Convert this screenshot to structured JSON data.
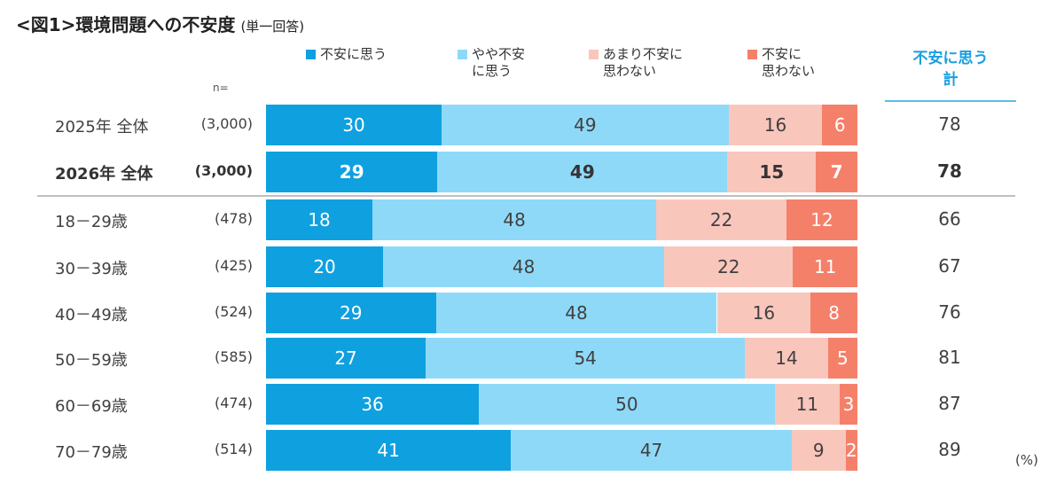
{
  "chart_data": {
    "type": "bar",
    "orientation": "horizontal-stacked-100",
    "title": "<図1>環境問題への不安度",
    "subtitle": "(単一回答)",
    "n_label": "n=",
    "unit": "(%)",
    "total_header": [
      "不安に思う",
      "計"
    ],
    "series": [
      {
        "name": "不安に思う",
        "color": "#0fa0e0",
        "label_color": "#ffffff"
      },
      {
        "name": "やや不安\nに思う",
        "color": "#8fd9f8",
        "label_color": "#404040"
      },
      {
        "name": "あまり不安に\n思わない",
        "color": "#f9c6bc",
        "label_color": "#404040"
      },
      {
        "name": "不安に\n思わない",
        "color": "#f5806a",
        "label_color": "#ffffff"
      }
    ],
    "rows": [
      {
        "label": "2025年 全体",
        "n": "(3,000)",
        "values": [
          30,
          49,
          16,
          6
        ],
        "total": 78,
        "bold": false
      },
      {
        "label": "2026年 全体",
        "n": "(3,000)",
        "values": [
          29,
          49,
          15,
          7
        ],
        "total": 78,
        "bold": true
      },
      {
        "label": "18－29歳",
        "n": "(478)",
        "values": [
          18,
          48,
          22,
          12
        ],
        "total": 66,
        "bold": false
      },
      {
        "label": "30－39歳",
        "n": "(425)",
        "values": [
          20,
          48,
          22,
          11
        ],
        "total": 67,
        "bold": false
      },
      {
        "label": "40－49歳",
        "n": "(524)",
        "values": [
          29,
          48,
          16,
          8
        ],
        "total": 76,
        "bold": false
      },
      {
        "label": "50－59歳",
        "n": "(585)",
        "values": [
          27,
          54,
          14,
          5
        ],
        "total": 81,
        "bold": false
      },
      {
        "label": "60－69歳",
        "n": "(474)",
        "values": [
          36,
          50,
          11,
          3
        ],
        "total": 87,
        "bold": false
      },
      {
        "label": "70－79歳",
        "n": "(514)",
        "values": [
          41,
          47,
          9,
          2
        ],
        "total": 89,
        "bold": false
      }
    ]
  }
}
